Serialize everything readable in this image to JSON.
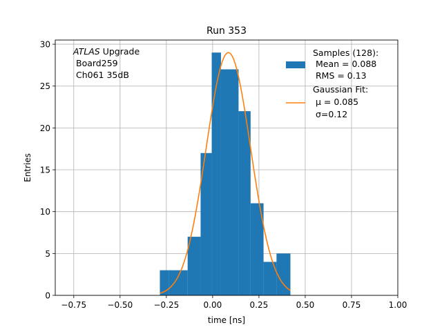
{
  "chart_data": {
    "type": "bar",
    "title": "Run 353",
    "xlabel": "time [ns]",
    "ylabel": "Entries",
    "xlim": [
      -0.85,
      1.0
    ],
    "ylim": [
      0,
      30.5
    ],
    "xticks": [
      -0.75,
      -0.5,
      -0.25,
      0.0,
      0.25,
      0.5,
      0.75,
      1.0
    ],
    "xtick_labels": [
      "−0.75",
      "−0.50",
      "−0.25",
      "0.00",
      "0.25",
      "0.50",
      "0.75",
      "1.00"
    ],
    "yticks": [
      0,
      5,
      10,
      15,
      20,
      25,
      30
    ],
    "ytick_labels": [
      "0",
      "5",
      "10",
      "15",
      "20",
      "25",
      "30"
    ],
    "grid": true,
    "annotation": {
      "italic_prefix": "ATLAS",
      "lines": [
        " Upgrade",
        "Board259",
        "Ch061 35dB"
      ]
    },
    "histogram": {
      "name_lines": [
        "Samples (128):",
        " Mean = 0.088",
        " RMS = 0.13"
      ],
      "color": "#1f77b4",
      "bins": [
        {
          "x0": -0.285,
          "x1": -0.235,
          "count": 3
        },
        {
          "x0": -0.235,
          "x1": -0.135,
          "count": 3
        },
        {
          "x0": -0.135,
          "x1": -0.065,
          "count": 7
        },
        {
          "x0": -0.065,
          "x1": -0.005,
          "count": 17
        },
        {
          "x0": -0.005,
          "x1": 0.045,
          "count": 29
        },
        {
          "x0": 0.045,
          "x1": 0.14,
          "count": 27
        },
        {
          "x0": 0.14,
          "x1": 0.205,
          "count": 22
        },
        {
          "x0": 0.205,
          "x1": 0.275,
          "count": 11
        },
        {
          "x0": 0.275,
          "x1": 0.345,
          "count": 4
        },
        {
          "x0": 0.345,
          "x1": 0.42,
          "count": 5
        }
      ]
    },
    "fit": {
      "name_lines": [
        "Gaussian Fit:",
        " μ = 0.085",
        " σ=0.12"
      ],
      "color": "#ff7f0e",
      "amplitude": 29,
      "mu": 0.085,
      "sigma": 0.12,
      "x_range": [
        -0.285,
        0.42
      ]
    },
    "legend_position": "upper right"
  }
}
